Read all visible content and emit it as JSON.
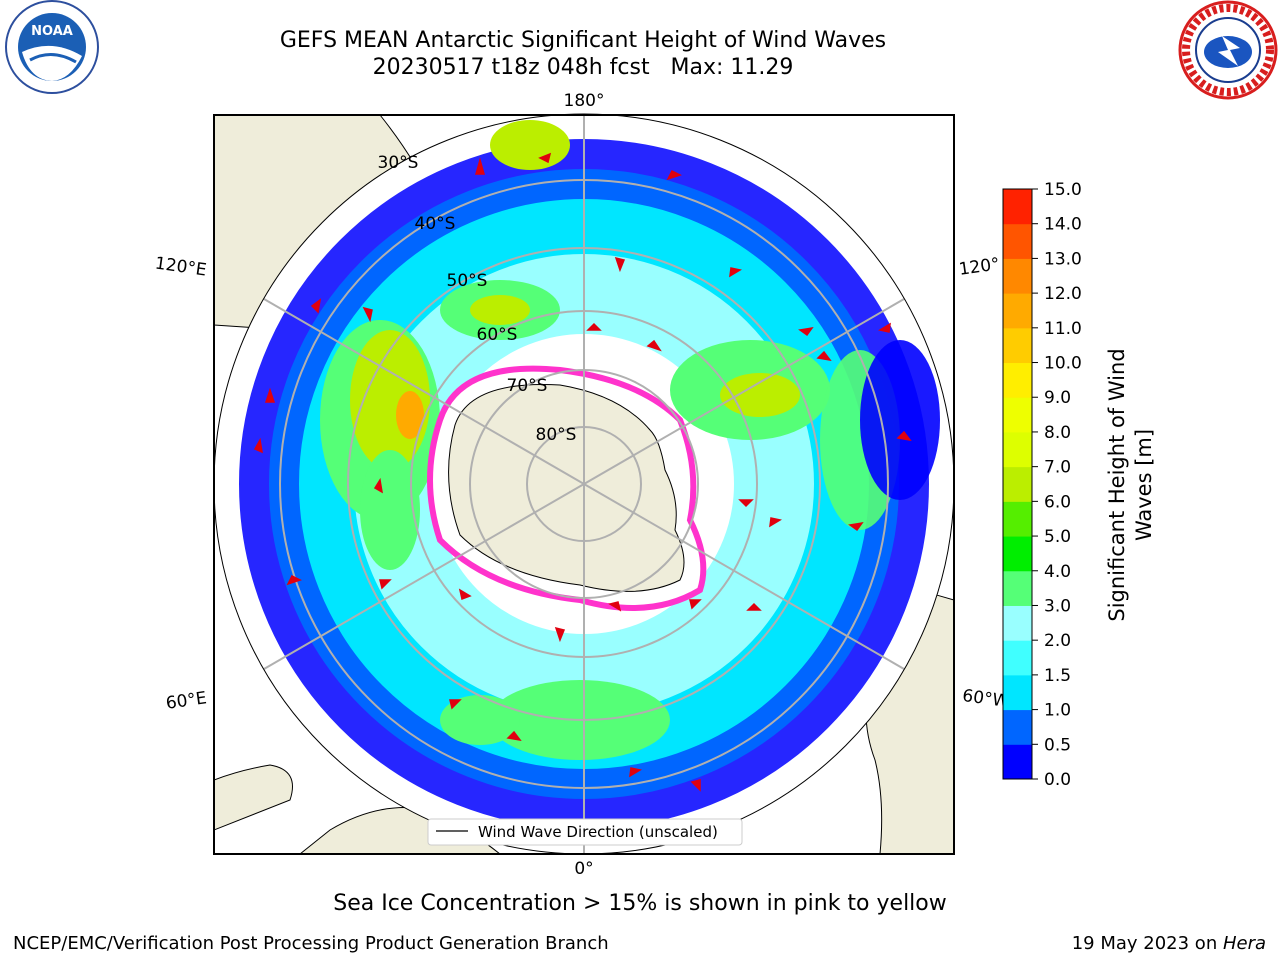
{
  "header": {
    "title": "GEFS MEAN Antarctic Significant Height of Wind Waves",
    "subtitle": "20230517 t18z 048h fcst   Max: 11.29"
  },
  "logos": {
    "noaa": {
      "text": "NOAA",
      "icon": "noaa-logo-icon"
    },
    "nws": {
      "text": "NATIONAL WEATHER SERVICE",
      "icon": "nws-logo-icon"
    }
  },
  "map": {
    "projection": "south-polar-stereographic",
    "lon_labels": {
      "top": "180°",
      "bottom": "0°",
      "left_upper": "120°E",
      "left_lower": "60°E",
      "right_upper": "120°",
      "right_lower": "60°W"
    },
    "lat_labels": [
      "30°S",
      "40°S",
      "50°S",
      "60°S",
      "70°S",
      "80°S"
    ],
    "legend": "Wind Wave Direction (unscaled)",
    "colors": {
      "land": "#efedda",
      "grid": "#b0b0b0",
      "arrow": "#e0000f",
      "ice_pink": "#ff33cc"
    }
  },
  "colorbar": {
    "label_line1": "Significant Height of Wind",
    "label_line2": "Waves [m]",
    "ticks": [
      "0.0",
      "0.5",
      "1.0",
      "1.5",
      "2.0",
      "3.0",
      "4.0",
      "5.0",
      "6.0",
      "7.0",
      "8.0",
      "9.0",
      "10.0",
      "11.0",
      "12.0",
      "13.0",
      "14.0",
      "15.0"
    ],
    "colors": [
      "#0000ff",
      "#0066ff",
      "#00e6ff",
      "#40ffff",
      "#99ffff",
      "#55ff77",
      "#00ee00",
      "#55ee00",
      "#bbee00",
      "#ddff00",
      "#eeff00",
      "#ffee00",
      "#ffcc00",
      "#ffaa00",
      "#ff8800",
      "#ff5500",
      "#ff2200"
    ]
  },
  "footer": {
    "note": "Sea Ice Concentration > 15% is shown in pink to yellow",
    "left": "NCEP/EMC/Verification Post Processing Product Generation Branch",
    "right_date": "19 May 2023 on ",
    "right_host": "Hera"
  }
}
